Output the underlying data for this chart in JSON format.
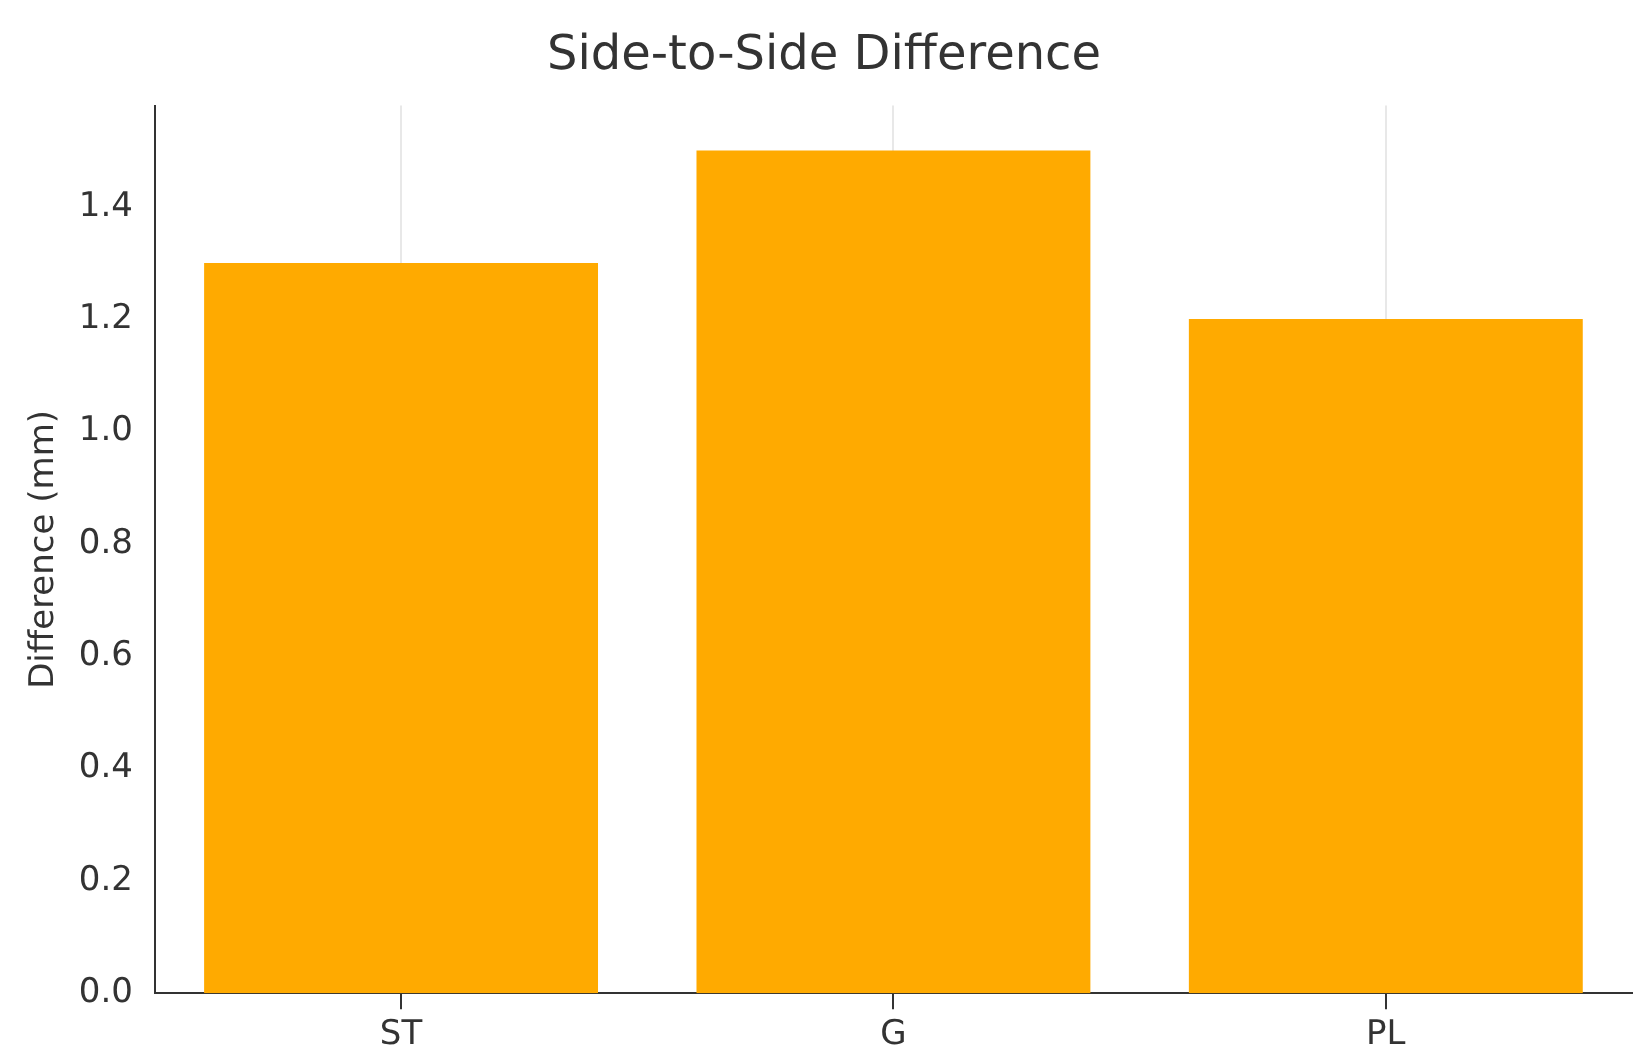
{
  "chart_data": {
    "type": "bar",
    "title": "Side-to-Side Difference",
    "ylabel": "Difference (mm)",
    "categories": [
      "ST",
      "G",
      "PL"
    ],
    "values": [
      1.3,
      1.5,
      1.2
    ],
    "color": "#ffaa00",
    "ylim": [
      0,
      1.58
    ],
    "yticks": [
      {
        "value": 0,
        "label": "0.0"
      },
      0.2,
      0.4,
      0.6,
      0.8,
      {
        "value": 1,
        "label": "1.0"
      },
      1.2,
      1.4
    ],
    "grid": "x",
    "legend": false
  }
}
